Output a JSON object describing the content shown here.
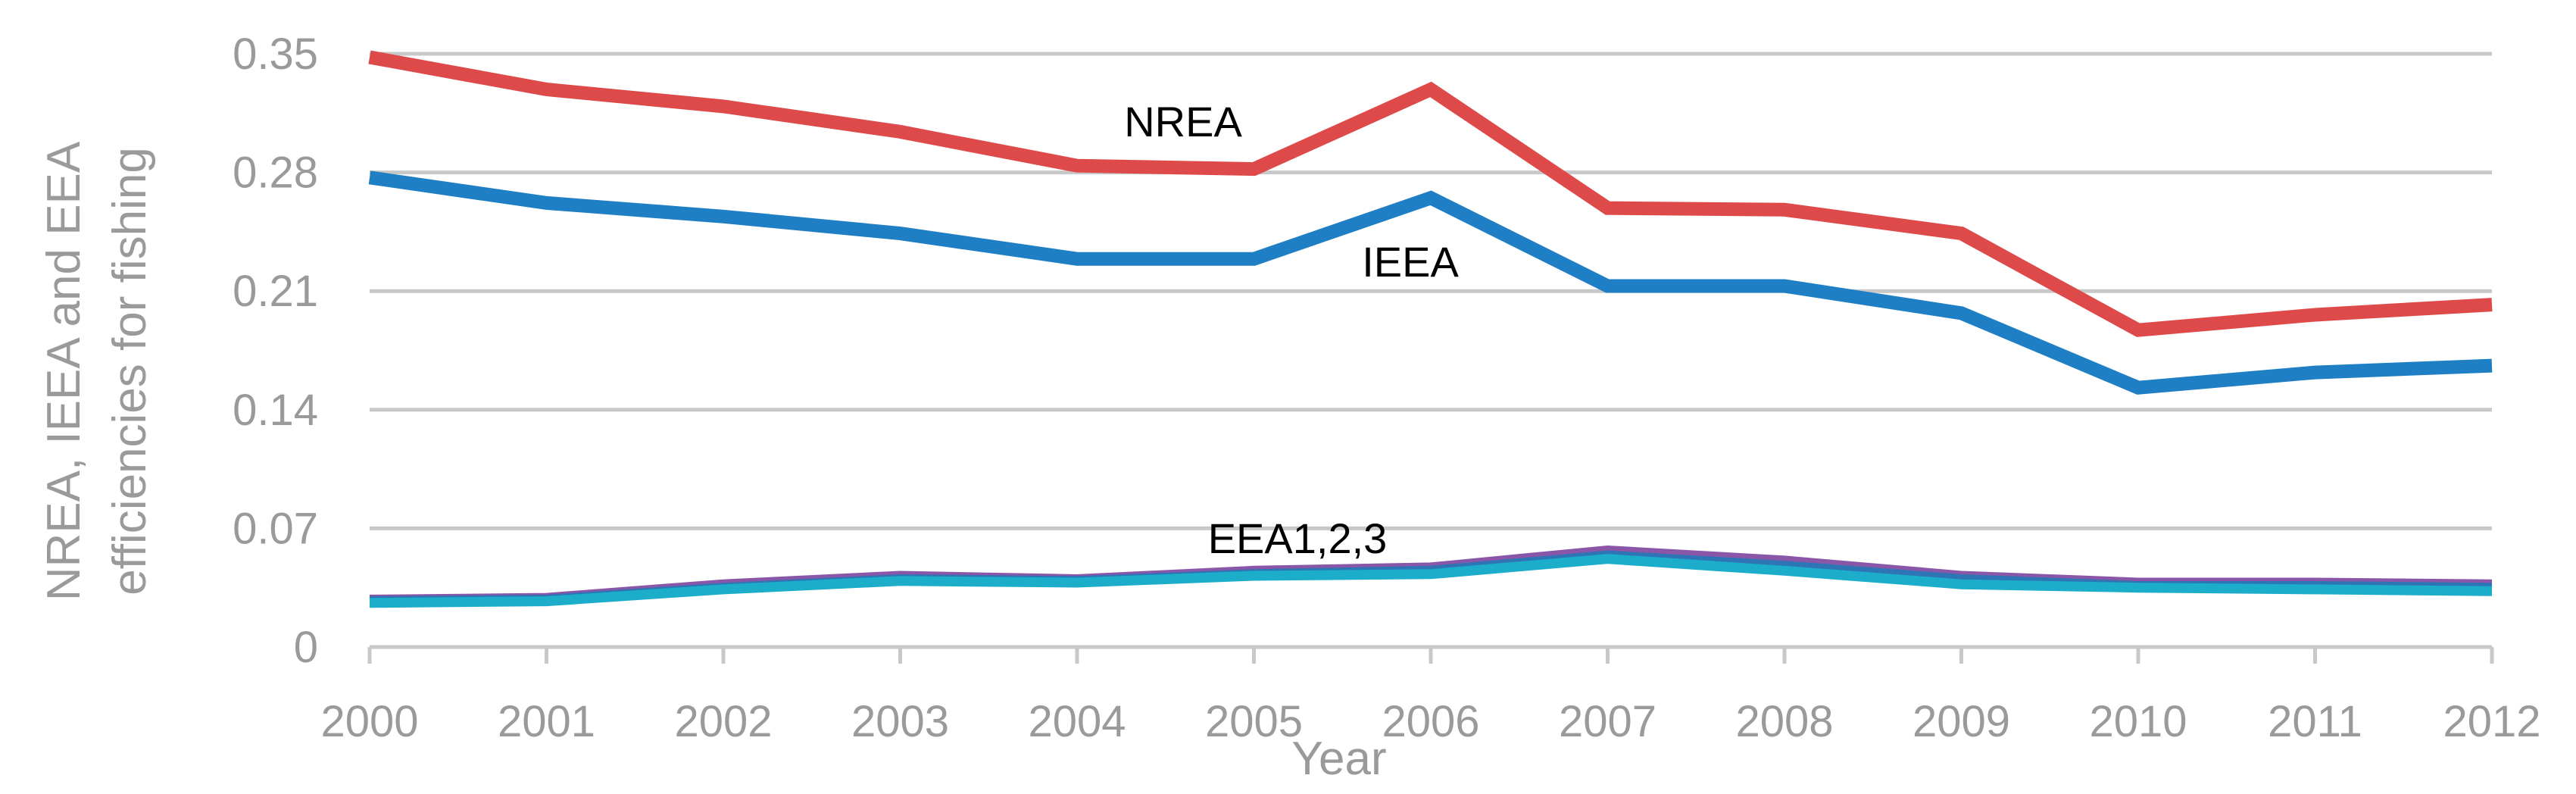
{
  "chart_data": {
    "type": "line",
    "title": "",
    "xlabel": "Year",
    "ylabel_lines": [
      "NREA, IEEA and EEA",
      "efficiencies for fishing"
    ],
    "categories": [
      "2000",
      "2001",
      "2002",
      "2003",
      "2004",
      "2005",
      "2006",
      "2007",
      "2008",
      "2009",
      "2010",
      "2011",
      "2012"
    ],
    "yticks": [
      "0",
      "0.07",
      "0.14",
      "0.21",
      "0.28",
      "0.35"
    ],
    "ylim": [
      0,
      0.35
    ],
    "grid": true,
    "series": [
      {
        "name": "NREA",
        "color": "#de4a4a",
        "label": "NREA",
        "values": [
          0.348,
          0.329,
          0.319,
          0.304,
          0.284,
          0.282,
          0.329,
          0.259,
          0.258,
          0.244,
          0.187,
          0.196,
          0.202
        ]
      },
      {
        "name": "IEEA",
        "color": "#1f7fc4",
        "label": "IEEA",
        "values": [
          0.277,
          0.262,
          0.254,
          0.244,
          0.229,
          0.229,
          0.265,
          0.213,
          0.213,
          0.197,
          0.153,
          0.162,
          0.166
        ]
      },
      {
        "name": "EEA1",
        "color": "#8a56a8",
        "label": "",
        "values": [
          0.028,
          0.029,
          0.037,
          0.042,
          0.04,
          0.045,
          0.047,
          0.057,
          0.051,
          0.042,
          0.038,
          0.038,
          0.037
        ]
      },
      {
        "name": "EEA2",
        "color": "#2e75b6",
        "label": "",
        "values": [
          0.027,
          0.028,
          0.035,
          0.04,
          0.039,
          0.043,
          0.045,
          0.054,
          0.048,
          0.04,
          0.036,
          0.036,
          0.035
        ]
      },
      {
        "name": "EEA3",
        "color": "#1badc9",
        "label": "",
        "values": [
          0.026,
          0.027,
          0.034,
          0.039,
          0.038,
          0.042,
          0.043,
          0.052,
          0.045,
          0.037,
          0.035,
          0.034,
          0.033
        ]
      }
    ],
    "annotations": [
      "NREA",
      "IEEA",
      "EEA1,2,3"
    ]
  }
}
